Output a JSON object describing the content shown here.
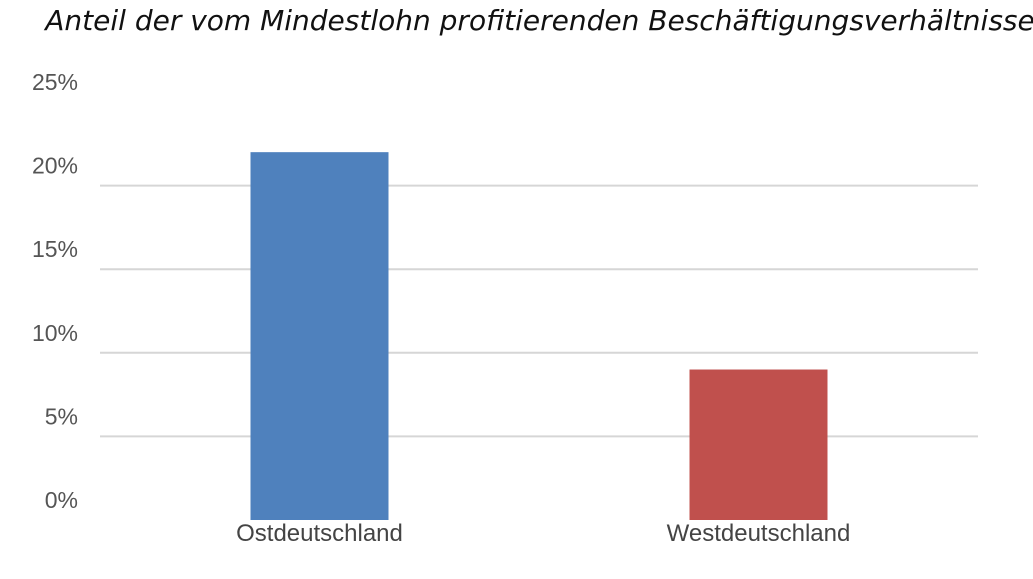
{
  "chart_data": {
    "type": "bar",
    "title": "Anteil der vom Mindestlohn profitierenden Beschäftigungsverhältnisse",
    "xlabel": "",
    "ylabel": "",
    "categories": [
      "Ostdeutschland",
      "Westdeutschland"
    ],
    "values": [
      22.0,
      9.0
    ],
    "value_unit": "%",
    "colors": [
      "#4f81bd",
      "#c0504d"
    ],
    "ylim": [
      0,
      25
    ],
    "yticks": [
      0,
      5,
      10,
      15,
      20,
      25
    ],
    "ytick_labels": [
      "0%",
      "5%",
      "10%",
      "15%",
      "20%",
      "25%"
    ],
    "grid": true,
    "legend": "none"
  }
}
